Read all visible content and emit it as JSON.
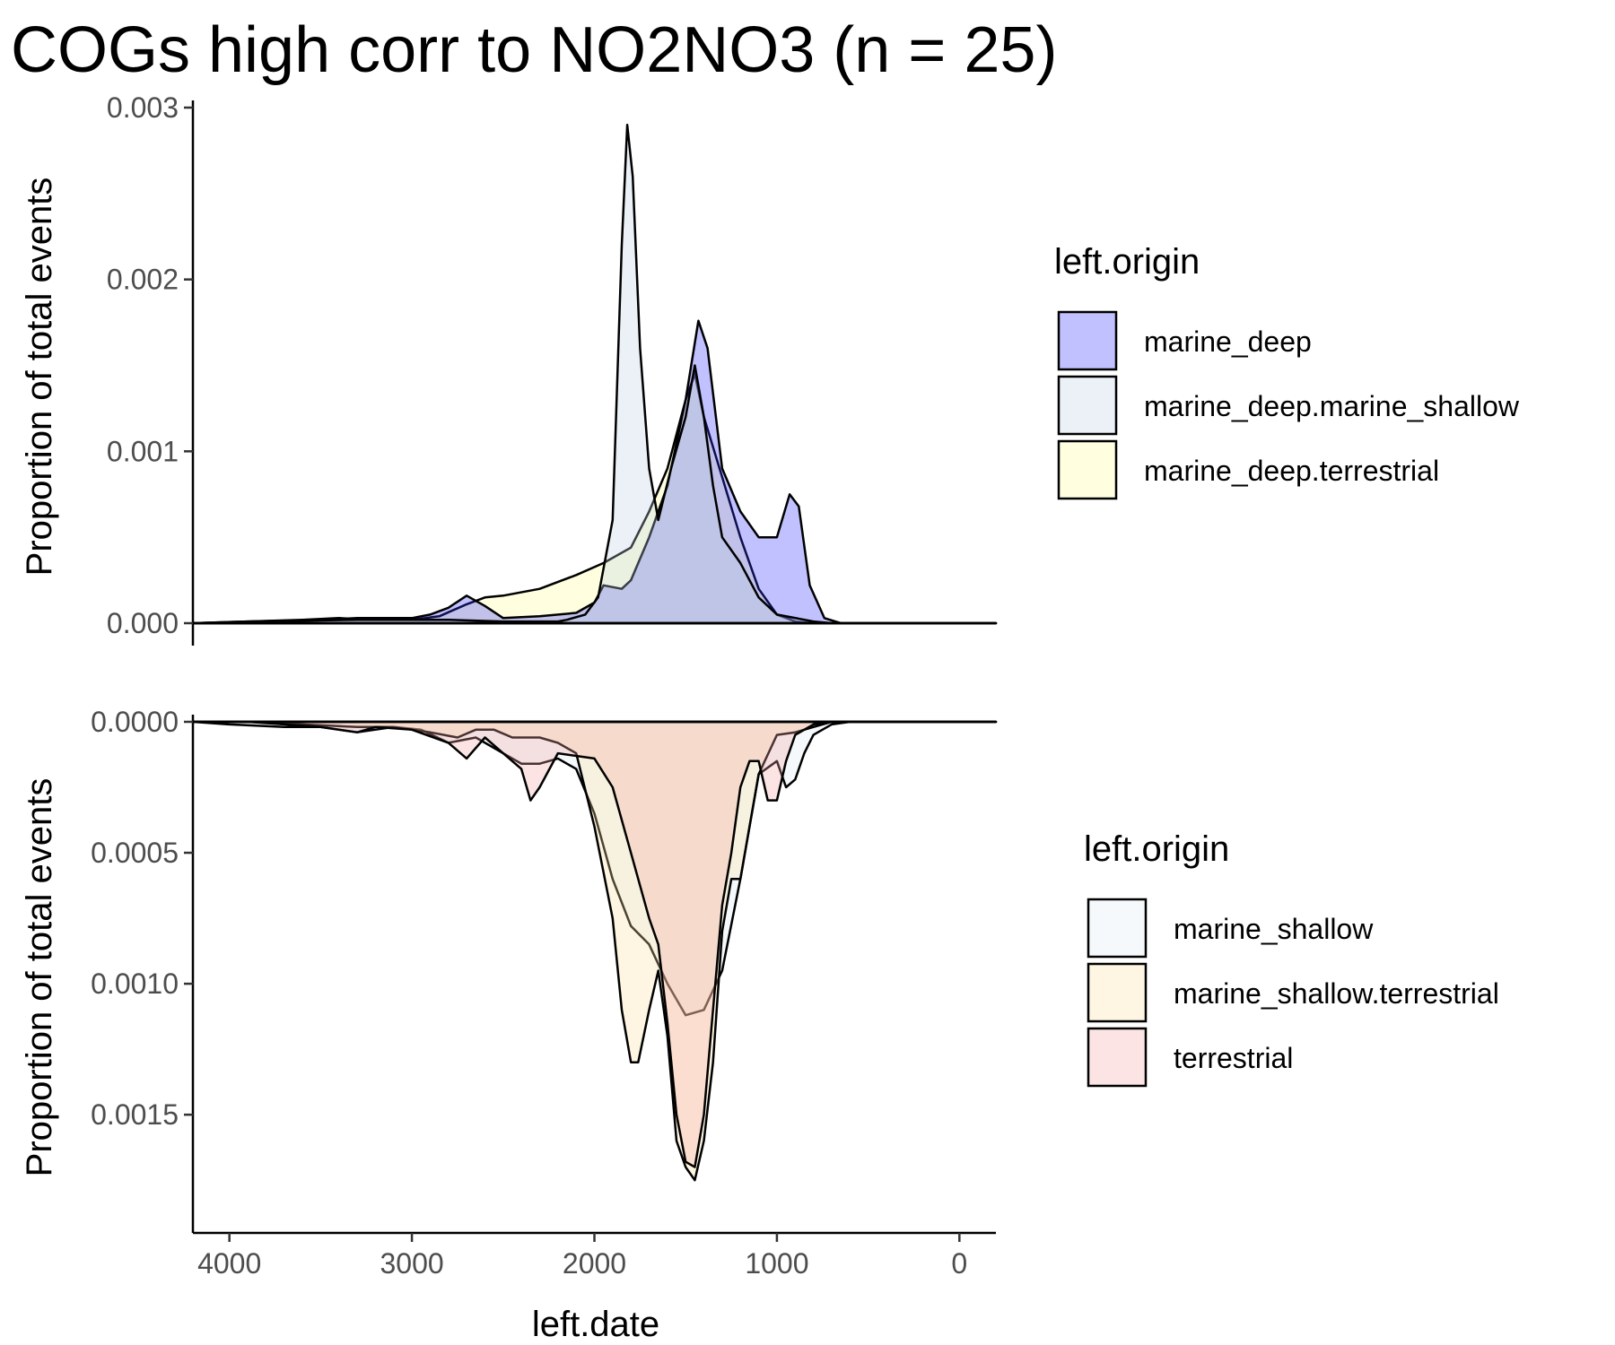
{
  "chart_data": {
    "type": "area",
    "title": "COGs high corr to NO2NO3 (n = 25)",
    "xlabel": "left.date",
    "ylabel": "Proportion of total events",
    "x_reversed": true,
    "xlim": [
      4200,
      -200
    ],
    "x_ticks": [
      4000,
      3000,
      2000,
      1000,
      0
    ],
    "x_tick_labels": [
      "4000",
      "3000",
      "2000",
      "1000",
      "0"
    ],
    "panels": [
      {
        "name": "top",
        "orientation": "up",
        "ylim": [
          0,
          0.003
        ],
        "y_ticks": [
          0,
          0.001,
          0.002,
          0.003
        ],
        "y_tick_labels": [
          "0.000",
          "0.001",
          "0.002",
          "0.003"
        ],
        "legend_title": "left.origin",
        "series": [
          {
            "name": "marine_deep.terrestrial",
            "color": "#ffff99",
            "points": [
              [
                4200,
                0
              ],
              [
                3900,
                1e-05
              ],
              [
                3600,
                2e-05
              ],
              [
                3400,
                3e-05
              ],
              [
                3200,
                2e-05
              ],
              [
                3000,
                2e-05
              ],
              [
                2850,
                4e-05
              ],
              [
                2700,
                0.00011
              ],
              [
                2600,
                0.00015
              ],
              [
                2500,
                0.00016
              ],
              [
                2300,
                0.0002
              ],
              [
                2100,
                0.00028
              ],
              [
                1950,
                0.00035
              ],
              [
                1800,
                0.00044
              ],
              [
                1700,
                0.00065
              ],
              [
                1600,
                0.0009
              ],
              [
                1500,
                0.0013
              ],
              [
                1450,
                0.00145
              ],
              [
                1400,
                0.0012
              ],
              [
                1300,
                0.00085
              ],
              [
                1200,
                0.0005
              ],
              [
                1100,
                0.0002
              ],
              [
                1000,
                5e-05
              ],
              [
                900,
                1e-05
              ],
              [
                800,
                0
              ],
              [
                -200,
                0
              ]
            ]
          },
          {
            "name": "marine_deep",
            "color": "#3333ff",
            "points": [
              [
                4200,
                0
              ],
              [
                3900,
                1e-05
              ],
              [
                3500,
                2e-05
              ],
              [
                3300,
                3e-05
              ],
              [
                3000,
                3e-05
              ],
              [
                2900,
                5e-05
              ],
              [
                2800,
                9e-05
              ],
              [
                2700,
                0.00016
              ],
              [
                2600,
                0.0001
              ],
              [
                2500,
                3e-05
              ],
              [
                2300,
                4e-05
              ],
              [
                2100,
                6e-05
              ],
              [
                2000,
                0.00012
              ],
              [
                1950,
                0.00022
              ],
              [
                1850,
                0.0002
              ],
              [
                1800,
                0.00025
              ],
              [
                1700,
                0.0005
              ],
              [
                1600,
                0.0008
              ],
              [
                1500,
                0.0013
              ],
              [
                1430,
                0.00176
              ],
              [
                1380,
                0.0016
              ],
              [
                1300,
                0.0009
              ],
              [
                1200,
                0.00065
              ],
              [
                1100,
                0.0005
              ],
              [
                1000,
                0.0005
              ],
              [
                930,
                0.00075
              ],
              [
                880,
                0.00068
              ],
              [
                820,
                0.00022
              ],
              [
                740,
                3e-05
              ],
              [
                650,
                0
              ],
              [
                -200,
                0
              ]
            ]
          },
          {
            "name": "marine_deep.marine_shallow",
            "color": "#bdd0e0",
            "points": [
              [
                4200,
                0
              ],
              [
                3800,
                1e-05
              ],
              [
                3300,
                2e-05
              ],
              [
                3000,
                2e-05
              ],
              [
                2800,
                2e-05
              ],
              [
                2500,
                1e-05
              ],
              [
                2200,
                1e-05
              ],
              [
                2150,
                2e-05
              ],
              [
                2050,
                5e-05
              ],
              [
                1980,
                0.00015
              ],
              [
                1900,
                0.0006
              ],
              [
                1850,
                0.0022
              ],
              [
                1820,
                0.0029
              ],
              [
                1790,
                0.0026
              ],
              [
                1750,
                0.0016
              ],
              [
                1700,
                0.0009
              ],
              [
                1650,
                0.0006
              ],
              [
                1580,
                0.0009
              ],
              [
                1500,
                0.0012
              ],
              [
                1450,
                0.0015
              ],
              [
                1400,
                0.0012
              ],
              [
                1350,
                0.0008
              ],
              [
                1300,
                0.0005
              ],
              [
                1200,
                0.00035
              ],
              [
                1100,
                0.00015
              ],
              [
                1000,
                5e-05
              ],
              [
                800,
                1e-05
              ],
              [
                700,
                0
              ],
              [
                -200,
                0
              ]
            ]
          }
        ]
      },
      {
        "name": "bottom",
        "orientation": "down",
        "ylim": [
          0,
          0.0019
        ],
        "y_ticks": [
          0,
          0.0005,
          0.001,
          0.0015
        ],
        "y_tick_labels": [
          "0.0000",
          "0.0005",
          "0.0010",
          "0.0015"
        ],
        "legend_title": "left.origin",
        "series": [
          {
            "name": "marine_shallow",
            "color": "#ddeaf2",
            "points": [
              [
                4200,
                0
              ],
              [
                4000,
                1e-05
              ],
              [
                3700,
                2e-05
              ],
              [
                3500,
                2e-05
              ],
              [
                3300,
                4e-05
              ],
              [
                3100,
                2e-05
              ],
              [
                2950,
                3e-05
              ],
              [
                2800,
                8e-05
              ],
              [
                2650,
                6e-05
              ],
              [
                2500,
                0.00012
              ],
              [
                2400,
                0.00016
              ],
              [
                2300,
                0.00016
              ],
              [
                2200,
                0.00014
              ],
              [
                2100,
                0.00018
              ],
              [
                2000,
                0.00035
              ],
              [
                1900,
                0.0006
              ],
              [
                1800,
                0.00078
              ],
              [
                1700,
                0.00085
              ],
              [
                1600,
                0.001
              ],
              [
                1500,
                0.00112
              ],
              [
                1400,
                0.0011
              ],
              [
                1300,
                0.00095
              ],
              [
                1200,
                0.0006
              ],
              [
                1100,
                0.0002
              ],
              [
                1000,
                0.00015
              ],
              [
                950,
                0.00025
              ],
              [
                900,
                0.00022
              ],
              [
                850,
                0.00012
              ],
              [
                800,
                5e-05
              ],
              [
                700,
                1e-05
              ],
              [
                600,
                0
              ],
              [
                -200,
                0
              ]
            ]
          },
          {
            "name": "marine_shallow.terrestrial",
            "color": "#fde0a0",
            "points": [
              [
                4200,
                0
              ],
              [
                3900,
                0
              ],
              [
                3600,
                1e-05
              ],
              [
                3300,
                2e-05
              ],
              [
                3100,
                2e-05
              ],
              [
                2900,
                4e-05
              ],
              [
                2750,
                6e-05
              ],
              [
                2650,
                3e-05
              ],
              [
                2550,
                3e-05
              ],
              [
                2450,
                6e-05
              ],
              [
                2300,
                6e-05
              ],
              [
                2200,
                8e-05
              ],
              [
                2100,
                0.00012
              ],
              [
                2000,
                0.0004
              ],
              [
                1900,
                0.00075
              ],
              [
                1850,
                0.0011
              ],
              [
                1800,
                0.0013
              ],
              [
                1760,
                0.0013
              ],
              [
                1700,
                0.0011
              ],
              [
                1650,
                0.00095
              ],
              [
                1600,
                0.0012
              ],
              [
                1550,
                0.0016
              ],
              [
                1500,
                0.0017
              ],
              [
                1450,
                0.00175
              ],
              [
                1400,
                0.0016
              ],
              [
                1350,
                0.0013
              ],
              [
                1300,
                0.0008
              ],
              [
                1250,
                0.0006
              ],
              [
                1200,
                0.0006
              ],
              [
                1150,
                0.0004
              ],
              [
                1100,
                0.0002
              ],
              [
                1000,
                5e-05
              ],
              [
                900,
                4e-05
              ],
              [
                800,
                2e-05
              ],
              [
                700,
                0
              ],
              [
                -200,
                0
              ]
            ]
          },
          {
            "name": "terrestrial",
            "color": "#f4a6a6",
            "points": [
              [
                4200,
                0
              ],
              [
                3900,
                0
              ],
              [
                3700,
                1e-05
              ],
              [
                3500,
                2e-05
              ],
              [
                3300,
                4e-05
              ],
              [
                3200,
                2e-05
              ],
              [
                3000,
                3e-05
              ],
              [
                2800,
                8e-05
              ],
              [
                2700,
                0.00014
              ],
              [
                2600,
                6e-05
              ],
              [
                2500,
                0.00012
              ],
              [
                2400,
                0.00018
              ],
              [
                2350,
                0.0003
              ],
              [
                2300,
                0.00025
              ],
              [
                2200,
                0.00012
              ],
              [
                2000,
                0.00014
              ],
              [
                1900,
                0.00025
              ],
              [
                1800,
                0.0005
              ],
              [
                1700,
                0.00075
              ],
              [
                1650,
                0.00085
              ],
              [
                1600,
                0.00115
              ],
              [
                1550,
                0.0015
              ],
              [
                1500,
                0.00168
              ],
              [
                1450,
                0.0017
              ],
              [
                1400,
                0.0015
              ],
              [
                1350,
                0.0011
              ],
              [
                1300,
                0.0007
              ],
              [
                1250,
                0.0005
              ],
              [
                1200,
                0.00025
              ],
              [
                1150,
                0.00015
              ],
              [
                1100,
                0.00015
              ],
              [
                1050,
                0.0003
              ],
              [
                1000,
                0.0003
              ],
              [
                950,
                0.00015
              ],
              [
                900,
                5e-05
              ],
              [
                800,
                1e-05
              ],
              [
                700,
                0
              ],
              [
                -200,
                0
              ]
            ]
          }
        ]
      }
    ]
  }
}
